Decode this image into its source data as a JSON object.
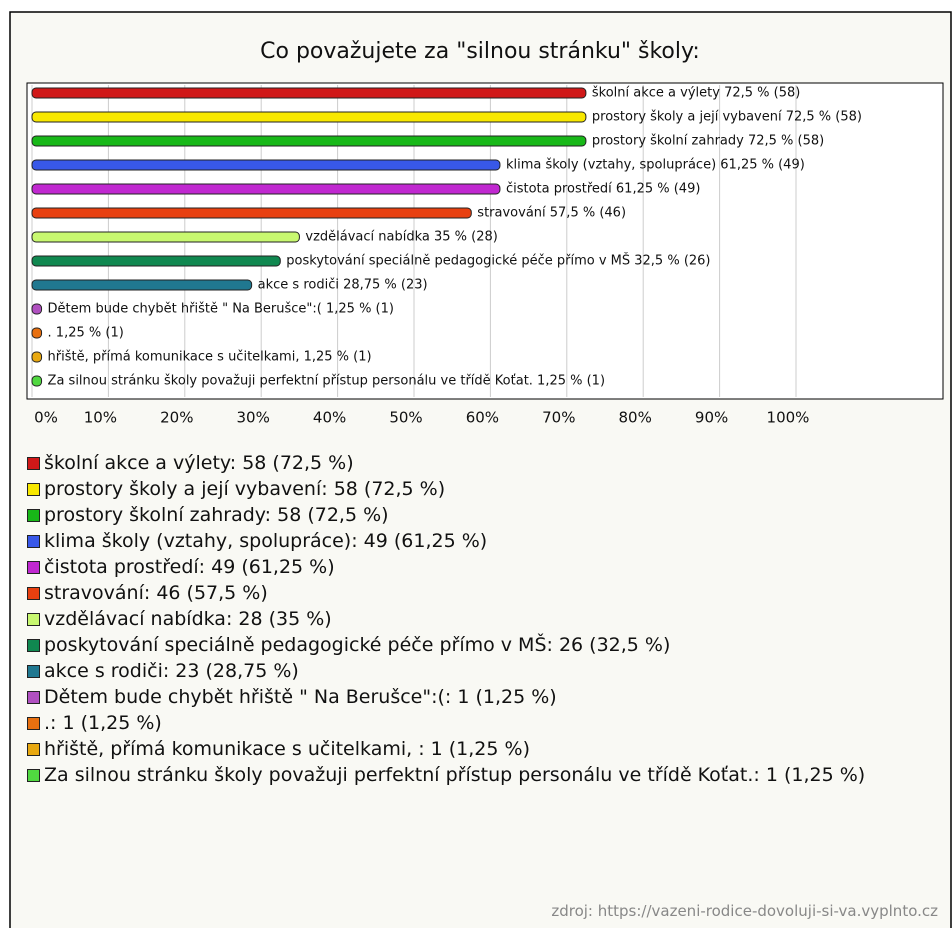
{
  "chart_data": {
    "type": "bar",
    "orientation": "horizontal",
    "title": "Co považujete za \"silnou stránku\" školy:",
    "values": [
      72.5,
      72.5,
      72.5,
      61.25,
      61.25,
      57.5,
      35,
      32.5,
      28.75,
      1.25,
      1.25,
      1.25,
      1.25
    ],
    "value_labels": [
      "školní akce a výlety 72,5 % (58)",
      "prostory školy a její vybavení 72,5 % (58)",
      "prostory školní zahrady 72,5 % (58)",
      "klima školy (vztahy, spolupráce) 61,25 % (49)",
      "čistota prostředí 61,25 % (49)",
      "stravování 57,5 % (46)",
      "vzdělávací nabídka 35 % (28)",
      "poskytování speciálně pedagogické péče přímo v MŠ 32,5 % (26)",
      "akce s rodiči 28,75 % (23)",
      "Dětem bude chybět hřiště \" Na Berušce\":( 1,25 % (1)",
      ". 1,25 % (1)",
      "hřiště, přímá komunikace s učitelkami, 1,25 % (1)",
      "Za silnou stránku školy považuji perfektní přístup personálu ve třídě Koťat. 1,25 % (1)"
    ],
    "legend": [
      "školní akce a výlety: 58 (72,5 %)",
      "prostory školy a její vybavení: 58 (72,5 %)",
      "prostory školní zahrady: 58 (72,5 %)",
      "klima školy (vztahy, spolupráce): 49 (61,25 %)",
      "čistota prostředí: 49 (61,25 %)",
      "stravování: 46 (57,5 %)",
      "vzdělávací nabídka: 28 (35 %)",
      "poskytování speciálně pedagogické péče přímo v MŠ: 26 (32,5 %)",
      "akce s rodiči: 23 (28,75 %)",
      "Dětem bude chybět hřiště \" Na Berušce\":(: 1 (1,25 %)",
      ".: 1 (1,25 %)",
      "hřiště, přímá komunikace s učitelkami, : 1 (1,25 %)",
      "Za silnou stránku školy považuji perfektní přístup personálu ve třídě Koťat.: 1 (1,25 %)"
    ],
    "colors": [
      "#d01818",
      "#f8e800",
      "#18b818",
      "#3858e8",
      "#c028d0",
      "#e84010",
      "#c8f870",
      "#108850",
      "#207890",
      "#b050c0",
      "#e87010",
      "#e8a810",
      "#50d840"
    ],
    "xlim": [
      0,
      100
    ],
    "xticks": [
      {
        "value": 0,
        "label": "0%"
      },
      {
        "value": 10,
        "label": "10%"
      },
      {
        "value": 20,
        "label": "20%"
      },
      {
        "value": 30,
        "label": "30%"
      },
      {
        "value": 40,
        "label": "40%"
      },
      {
        "value": 50,
        "label": "50%"
      },
      {
        "value": 60,
        "label": "60%"
      },
      {
        "value": 70,
        "label": "70%"
      },
      {
        "value": 80,
        "label": "80%"
      },
      {
        "value": 90,
        "label": "90%"
      },
      {
        "value": 100,
        "label": "100%"
      }
    ],
    "grid": true,
    "source": "zdroj: https://vazeni-rodice-dovoluji-si-va.vyplnto.cz"
  }
}
